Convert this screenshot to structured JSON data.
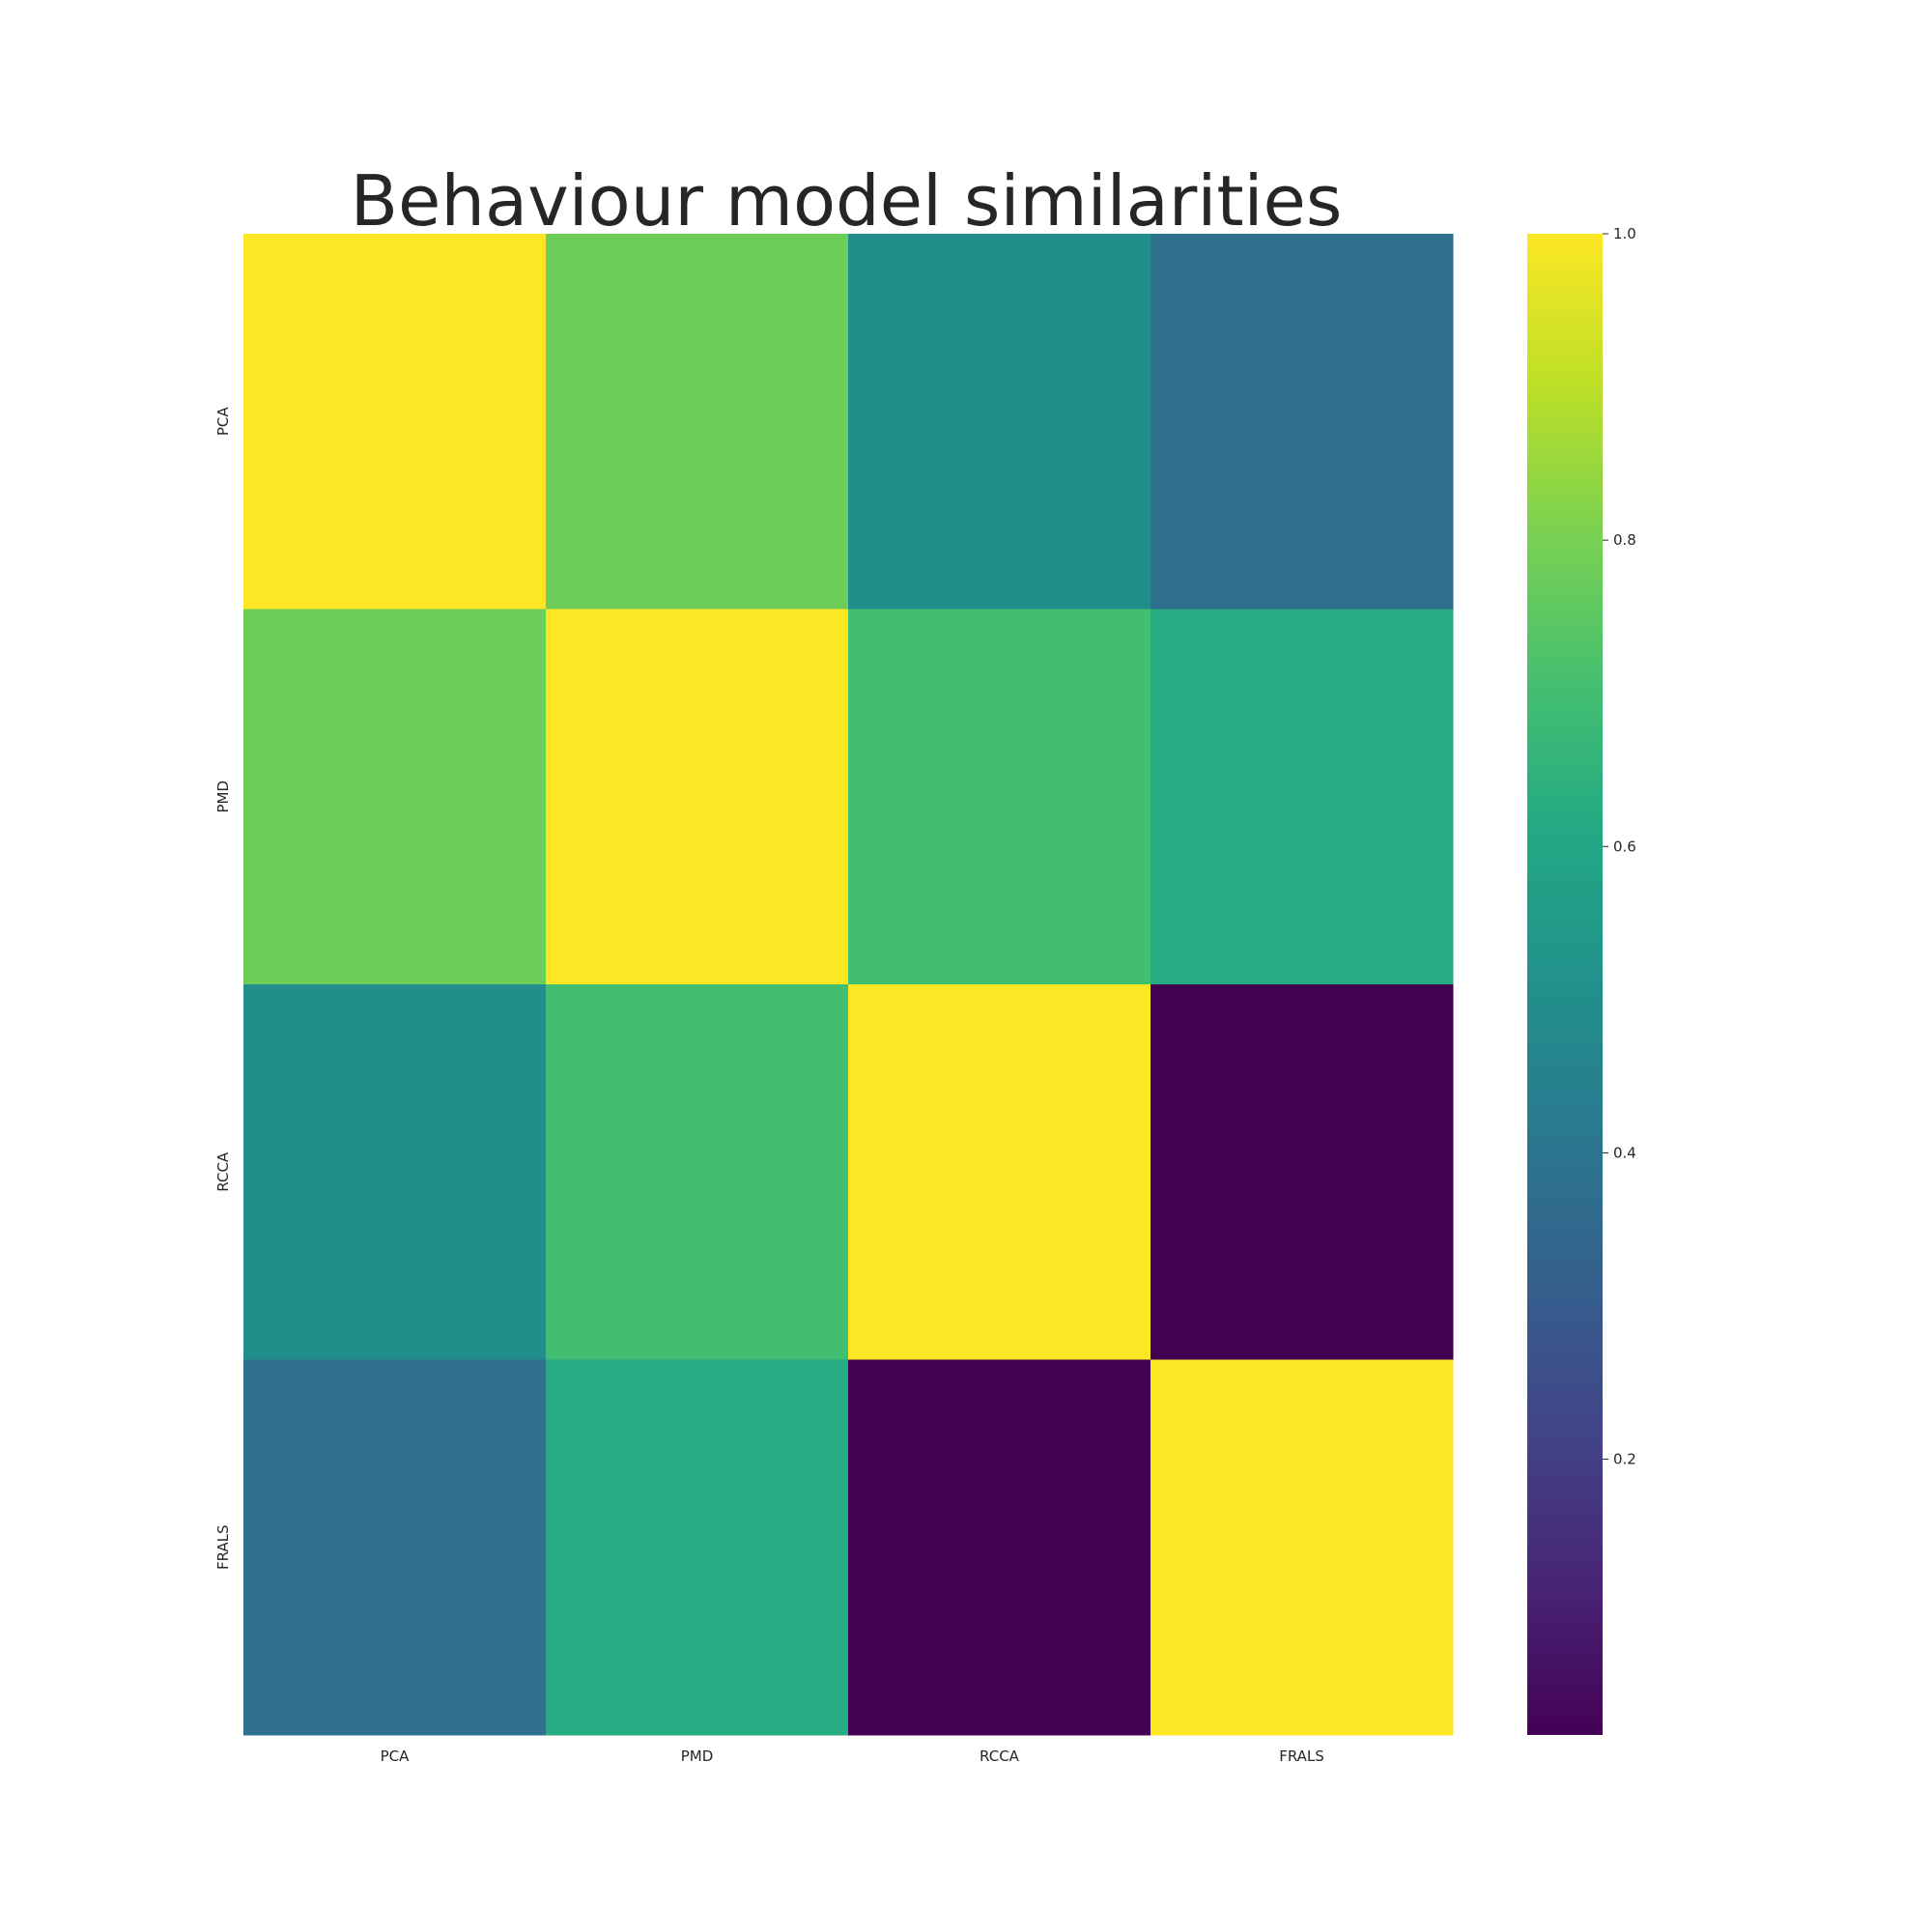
{
  "chart_data": {
    "type": "heatmap",
    "title": "Behaviour model similarities",
    "xlabel": "",
    "ylabel": "",
    "x_categories": [
      "PCA",
      "PMD",
      "RCCA",
      "FRALS"
    ],
    "y_categories": [
      "PCA",
      "PMD",
      "RCCA",
      "FRALS"
    ],
    "values": [
      [
        1.0,
        0.78,
        0.5,
        0.38
      ],
      [
        0.78,
        1.0,
        0.7,
        0.62
      ],
      [
        0.5,
        0.7,
        1.0,
        0.02
      ],
      [
        0.38,
        0.62,
        0.02,
        1.0
      ]
    ],
    "colormap": "viridis",
    "colorbar": {
      "range": [
        0.02,
        1.0
      ],
      "ticks": [
        0.2,
        0.4,
        0.6,
        0.8,
        1.0
      ],
      "tick_labels": [
        "0.2",
        "0.4",
        "0.6",
        "0.8",
        "1.0"
      ]
    },
    "grid": false,
    "legend": "colorbar-right"
  }
}
